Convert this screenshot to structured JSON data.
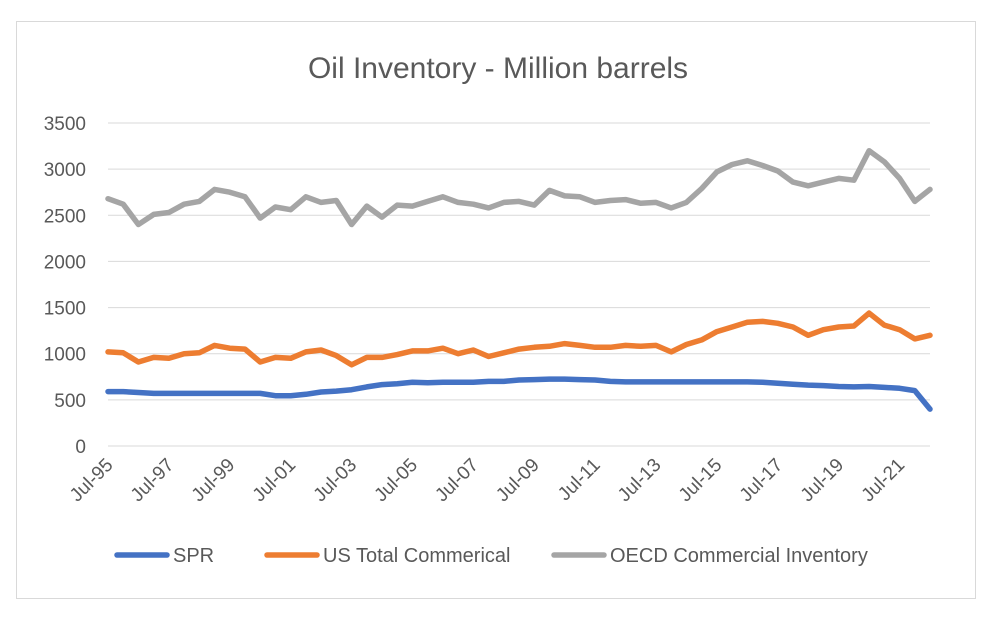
{
  "chart_data": {
    "type": "line",
    "title": "Oil Inventory - Million barrels",
    "xlabel": "",
    "ylabel": "",
    "ylim": [
      0,
      3500
    ],
    "yticks": [
      0,
      500,
      1000,
      1500,
      2000,
      2500,
      3000,
      3500
    ],
    "xlim": [
      1995.5,
      2022.5
    ],
    "xtick_labels": [
      "Jul-95",
      "Jul-97",
      "Jul-99",
      "Jul-01",
      "Jul-03",
      "Jul-05",
      "Jul-07",
      "Jul-09",
      "Jul-11",
      "Jul-13",
      "Jul-15",
      "Jul-17",
      "Jul-19",
      "Jul-21"
    ],
    "grid": "horizontal",
    "legend_position": "bottom",
    "x": [
      1995.5,
      1996.0,
      1996.5,
      1997.0,
      1997.5,
      1998.0,
      1998.5,
      1999.0,
      1999.5,
      2000.0,
      2000.5,
      2001.0,
      2001.5,
      2002.0,
      2002.5,
      2003.0,
      2003.5,
      2004.0,
      2004.5,
      2005.0,
      2005.5,
      2006.0,
      2006.5,
      2007.0,
      2007.5,
      2008.0,
      2008.5,
      2009.0,
      2009.5,
      2010.0,
      2010.5,
      2011.0,
      2011.5,
      2012.0,
      2012.5,
      2013.0,
      2013.5,
      2014.0,
      2014.5,
      2015.0,
      2015.5,
      2016.0,
      2016.5,
      2017.0,
      2017.5,
      2018.0,
      2018.5,
      2019.0,
      2019.5,
      2020.0,
      2020.5,
      2021.0,
      2021.5,
      2022.0,
      2022.5
    ],
    "series": [
      {
        "name": "SPR",
        "color": "#4472c4",
        "values": [
          590,
          590,
          580,
          570,
          570,
          570,
          570,
          570,
          570,
          570,
          570,
          545,
          545,
          560,
          585,
          595,
          610,
          640,
          665,
          675,
          690,
          685,
          690,
          690,
          690,
          700,
          700,
          715,
          720,
          725,
          725,
          720,
          715,
          700,
          695,
          695,
          695,
          695,
          695,
          695,
          695,
          695,
          695,
          690,
          680,
          670,
          660,
          655,
          645,
          640,
          645,
          635,
          625,
          600,
          400
        ]
      },
      {
        "name": "US Total Commerical",
        "color": "#ed7d31",
        "values": [
          1020,
          1010,
          910,
          960,
          950,
          1000,
          1010,
          1090,
          1060,
          1050,
          910,
          960,
          950,
          1020,
          1040,
          980,
          880,
          960,
          960,
          990,
          1030,
          1030,
          1060,
          1000,
          1040,
          970,
          1010,
          1050,
          1070,
          1080,
          1110,
          1090,
          1070,
          1070,
          1090,
          1080,
          1090,
          1020,
          1100,
          1150,
          1240,
          1290,
          1340,
          1350,
          1330,
          1290,
          1200,
          1260,
          1290,
          1300,
          1440,
          1310,
          1260,
          1160,
          1200
        ]
      },
      {
        "name": "OECD Commercial Inventory",
        "color": "#a5a5a5",
        "values": [
          2680,
          2620,
          2400,
          2510,
          2530,
          2620,
          2650,
          2780,
          2750,
          2700,
          2470,
          2590,
          2560,
          2700,
          2640,
          2660,
          2400,
          2600,
          2480,
          2610,
          2600,
          2650,
          2700,
          2640,
          2620,
          2580,
          2640,
          2650,
          2610,
          2770,
          2710,
          2700,
          2640,
          2660,
          2670,
          2630,
          2640,
          2580,
          2640,
          2790,
          2970,
          3050,
          3090,
          3040,
          2980,
          2860,
          2820,
          2860,
          2900,
          2880,
          3200,
          3080,
          2900,
          2650,
          2780
        ]
      }
    ]
  }
}
